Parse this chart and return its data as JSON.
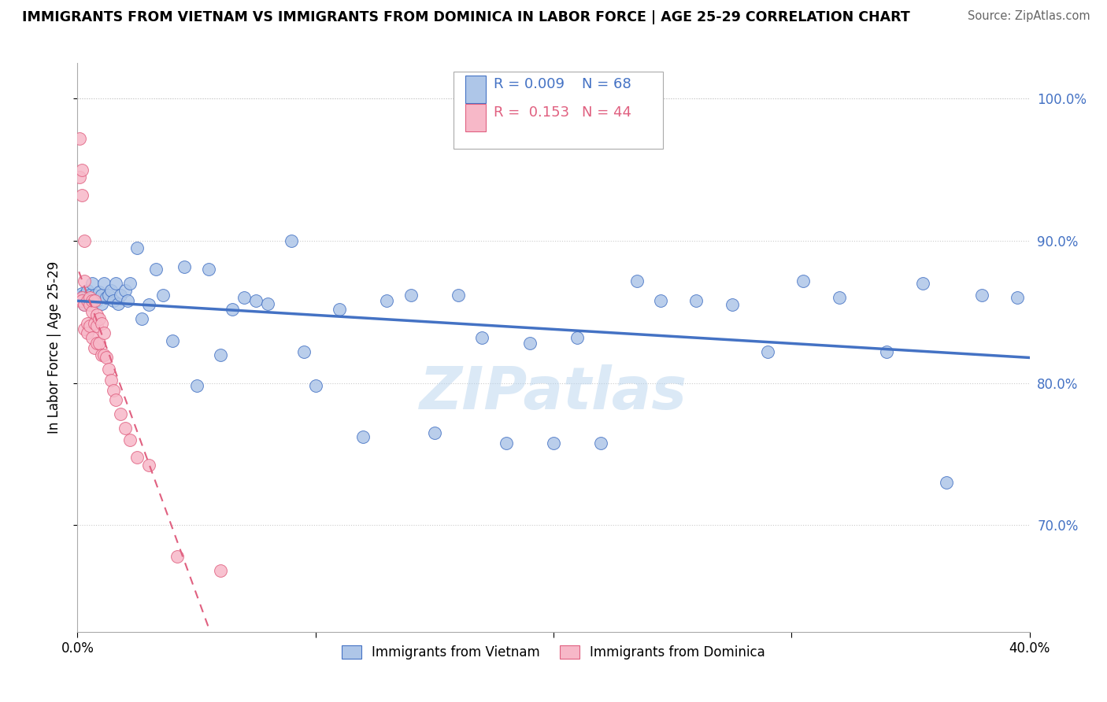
{
  "title": "IMMIGRANTS FROM VIETNAM VS IMMIGRANTS FROM DOMINICA IN LABOR FORCE | AGE 25-29 CORRELATION CHART",
  "source": "Source: ZipAtlas.com",
  "ylabel": "In Labor Force | Age 25-29",
  "xlim": [
    0.0,
    0.4
  ],
  "ylim": [
    0.625,
    1.025
  ],
  "yticks": [
    0.7,
    0.8,
    0.9,
    1.0
  ],
  "ytick_labels": [
    "70.0%",
    "80.0%",
    "90.0%",
    "100.0%"
  ],
  "xticks": [
    0.0,
    0.1,
    0.2,
    0.3,
    0.4
  ],
  "xtick_labels": [
    "0.0%",
    "",
    "",
    "",
    "40.0%"
  ],
  "r_vietnam": 0.009,
  "n_vietnam": 68,
  "r_dominica": 0.153,
  "n_dominica": 44,
  "color_vietnam": "#aec6e8",
  "color_dominica": "#f7b8c8",
  "line_color_vietnam": "#4472c4",
  "line_color_dominica": "#e06080",
  "watermark": "ZIPatlas",
  "vietnam_x": [
    0.001,
    0.002,
    0.002,
    0.003,
    0.003,
    0.004,
    0.004,
    0.005,
    0.005,
    0.006,
    0.006,
    0.007,
    0.008,
    0.009,
    0.01,
    0.01,
    0.011,
    0.012,
    0.013,
    0.014,
    0.015,
    0.016,
    0.017,
    0.018,
    0.02,
    0.021,
    0.022,
    0.025,
    0.027,
    0.03,
    0.033,
    0.036,
    0.04,
    0.045,
    0.05,
    0.055,
    0.06,
    0.065,
    0.07,
    0.075,
    0.08,
    0.09,
    0.095,
    0.1,
    0.11,
    0.12,
    0.13,
    0.14,
    0.15,
    0.16,
    0.17,
    0.18,
    0.19,
    0.2,
    0.21,
    0.22,
    0.235,
    0.245,
    0.26,
    0.275,
    0.29,
    0.305,
    0.32,
    0.34,
    0.355,
    0.365,
    0.38,
    0.395
  ],
  "vietnam_y": [
    0.86,
    0.858,
    0.863,
    0.855,
    0.862,
    0.86,
    0.865,
    0.858,
    0.862,
    0.86,
    0.87,
    0.862,
    0.858,
    0.864,
    0.862,
    0.856,
    0.87,
    0.86,
    0.862,
    0.865,
    0.858,
    0.87,
    0.856,
    0.862,
    0.865,
    0.858,
    0.87,
    0.895,
    0.845,
    0.855,
    0.88,
    0.862,
    0.83,
    0.882,
    0.798,
    0.88,
    0.82,
    0.852,
    0.86,
    0.858,
    0.856,
    0.9,
    0.822,
    0.798,
    0.852,
    0.762,
    0.858,
    0.862,
    0.765,
    0.862,
    0.832,
    0.758,
    0.828,
    0.758,
    0.832,
    0.758,
    0.872,
    0.858,
    0.858,
    0.855,
    0.822,
    0.872,
    0.86,
    0.822,
    0.87,
    0.73,
    0.862,
    0.86
  ],
  "dominica_x": [
    0.001,
    0.001,
    0.001,
    0.002,
    0.002,
    0.002,
    0.002,
    0.003,
    0.003,
    0.003,
    0.003,
    0.004,
    0.004,
    0.004,
    0.005,
    0.005,
    0.005,
    0.006,
    0.006,
    0.006,
    0.007,
    0.007,
    0.007,
    0.008,
    0.008,
    0.008,
    0.009,
    0.009,
    0.01,
    0.01,
    0.011,
    0.011,
    0.012,
    0.013,
    0.014,
    0.015,
    0.016,
    0.018,
    0.02,
    0.022,
    0.025,
    0.03,
    0.042,
    0.06
  ],
  "dominica_y": [
    0.972,
    0.945,
    0.858,
    0.95,
    0.932,
    0.86,
    0.858,
    0.9,
    0.872,
    0.855,
    0.838,
    0.858,
    0.842,
    0.835,
    0.86,
    0.855,
    0.84,
    0.858,
    0.85,
    0.832,
    0.858,
    0.842,
    0.825,
    0.848,
    0.84,
    0.828,
    0.845,
    0.828,
    0.842,
    0.82,
    0.835,
    0.82,
    0.818,
    0.81,
    0.802,
    0.795,
    0.788,
    0.778,
    0.768,
    0.76,
    0.748,
    0.742,
    0.678,
    0.668
  ]
}
